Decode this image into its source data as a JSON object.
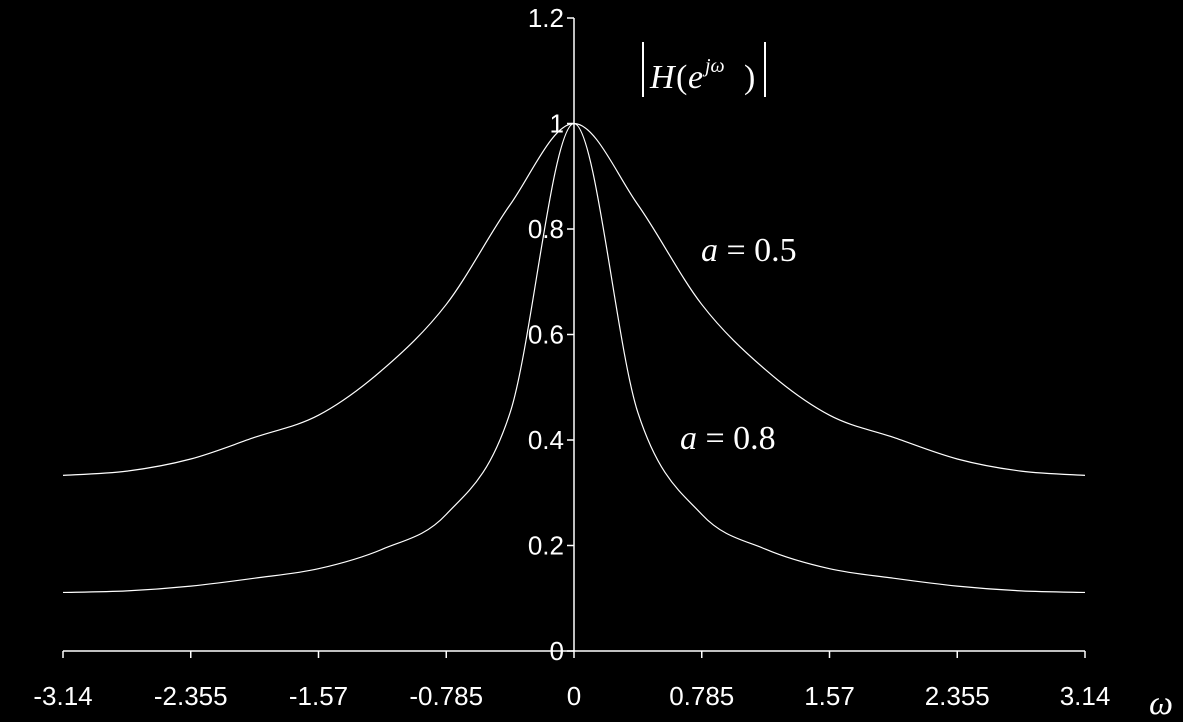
{
  "chart_data": {
    "type": "line",
    "title": "",
    "xlabel": "ω",
    "ylabel": "|H(e^{jω})|",
    "xlim": [
      -3.14,
      3.14
    ],
    "ylim": [
      0,
      1.2
    ],
    "x_ticks": [
      "-3.14",
      "-2.355",
      "-1.57",
      "-0.785",
      "0",
      "0.785",
      "1.57",
      "2.355",
      "3.14"
    ],
    "x_tick_values": [
      -3.14,
      -2.355,
      -1.57,
      -0.785,
      0,
      0.785,
      1.57,
      2.355,
      3.14
    ],
    "y_ticks": [
      "0",
      "0.2",
      "0.4",
      "0.6",
      "0.8",
      "1",
      "1.2"
    ],
    "y_tick_values": [
      0,
      0.2,
      0.4,
      0.6,
      0.8,
      1.0,
      1.2
    ],
    "grid": false,
    "series": [
      {
        "name": "a = 0.5",
        "color": "#ffffff",
        "x": [
          -3.14,
          -2.7475,
          -2.355,
          -1.9625,
          -1.57,
          -1.1775,
          -0.785,
          -0.3925,
          0,
          0.3925,
          0.785,
          1.1775,
          1.57,
          1.9625,
          2.355,
          2.7475,
          3.14
        ],
        "values": [
          0.333,
          0.341,
          0.364,
          0.405,
          0.447,
          0.533,
          0.657,
          0.846,
          1.0,
          0.846,
          0.657,
          0.533,
          0.447,
          0.405,
          0.364,
          0.341,
          0.333
        ]
      },
      {
        "name": "a = 0.8",
        "color": "#ffffff",
        "x": [
          -3.14,
          -2.7475,
          -2.355,
          -1.9625,
          -1.57,
          -1.1775,
          -0.785,
          -0.3925,
          0,
          0.3925,
          0.785,
          1.1775,
          1.57,
          1.9625,
          2.355,
          2.7475,
          3.14
        ],
        "values": [
          0.111,
          0.114,
          0.123,
          0.138,
          0.156,
          0.193,
          0.259,
          0.452,
          1.0,
          0.452,
          0.259,
          0.193,
          0.156,
          0.138,
          0.123,
          0.114,
          0.111
        ]
      }
    ],
    "annotations": [
      {
        "text": "a = 0.5",
        "x": 1.05,
        "y": 0.77
      },
      {
        "text": "a = 0.8",
        "x": 0.92,
        "y": 0.4
      },
      {
        "text": "|H(e^{jω})|",
        "x": 0.2,
        "y": 1.08
      }
    ]
  },
  "labels": {
    "axis_x_symbol": "ω",
    "mag_H": "H",
    "mag_open": "(",
    "mag_e": "e",
    "mag_exp": "jω",
    "mag_close": ")",
    "a_symbol": "a",
    "eq_05": " = 0.5",
    "eq_08": " = 0.8"
  }
}
